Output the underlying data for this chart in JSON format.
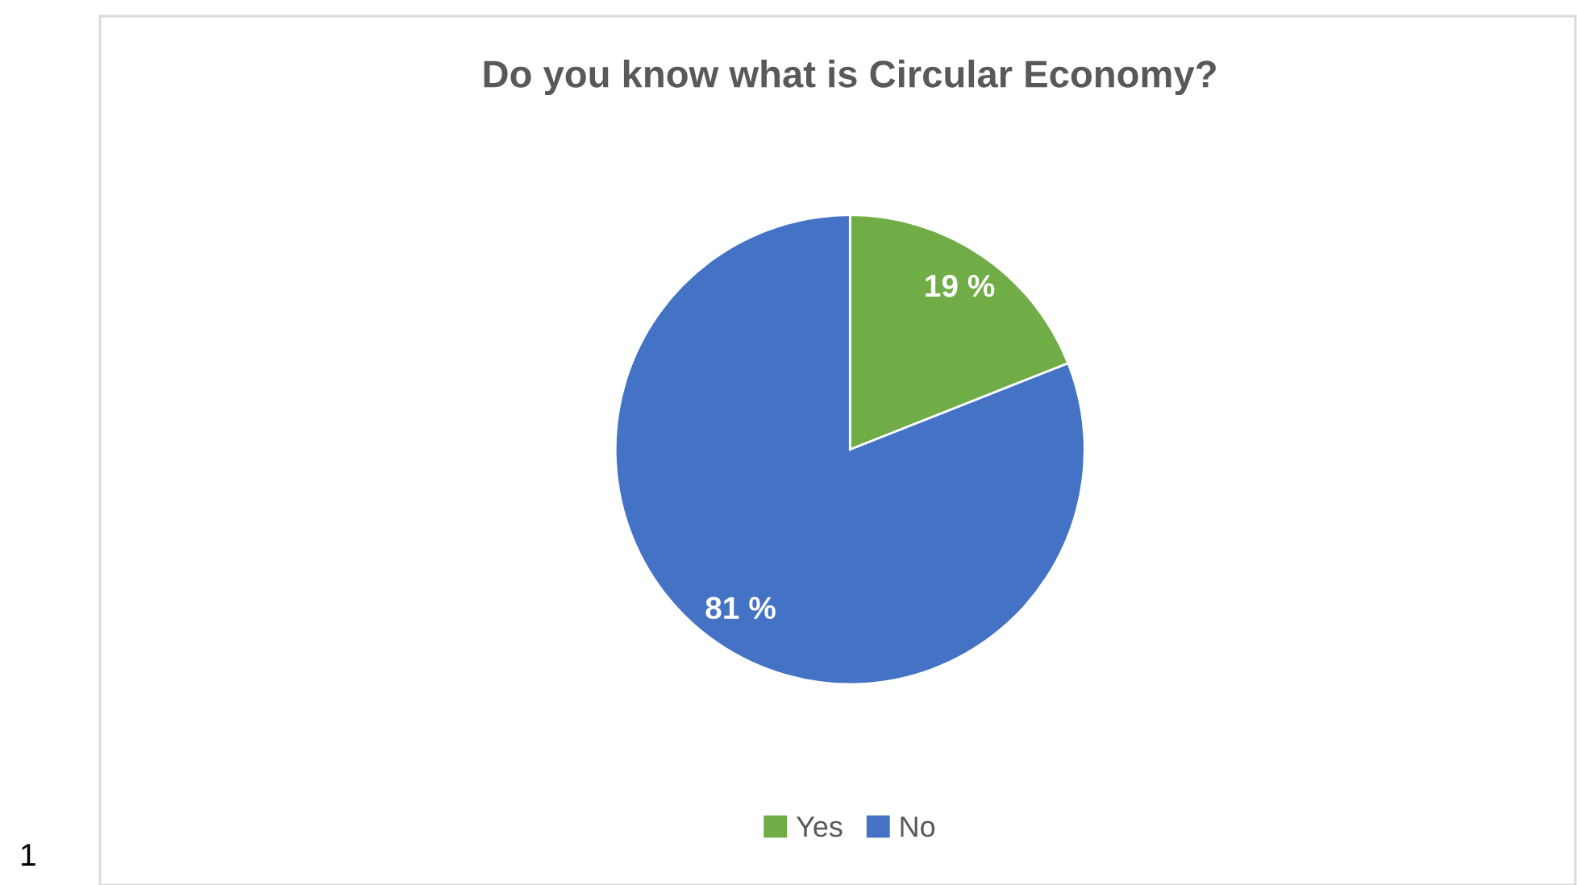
{
  "chart_data": {
    "type": "pie",
    "title": "Do you know what is Circular Economy?",
    "categories": [
      "Yes",
      "No"
    ],
    "values": [
      19,
      81
    ],
    "colors": [
      "#70ad47",
      "#4472c4"
    ],
    "value_labels": [
      "19 %",
      "81 %"
    ],
    "legend": "bottom",
    "annotations": [
      "1"
    ]
  }
}
